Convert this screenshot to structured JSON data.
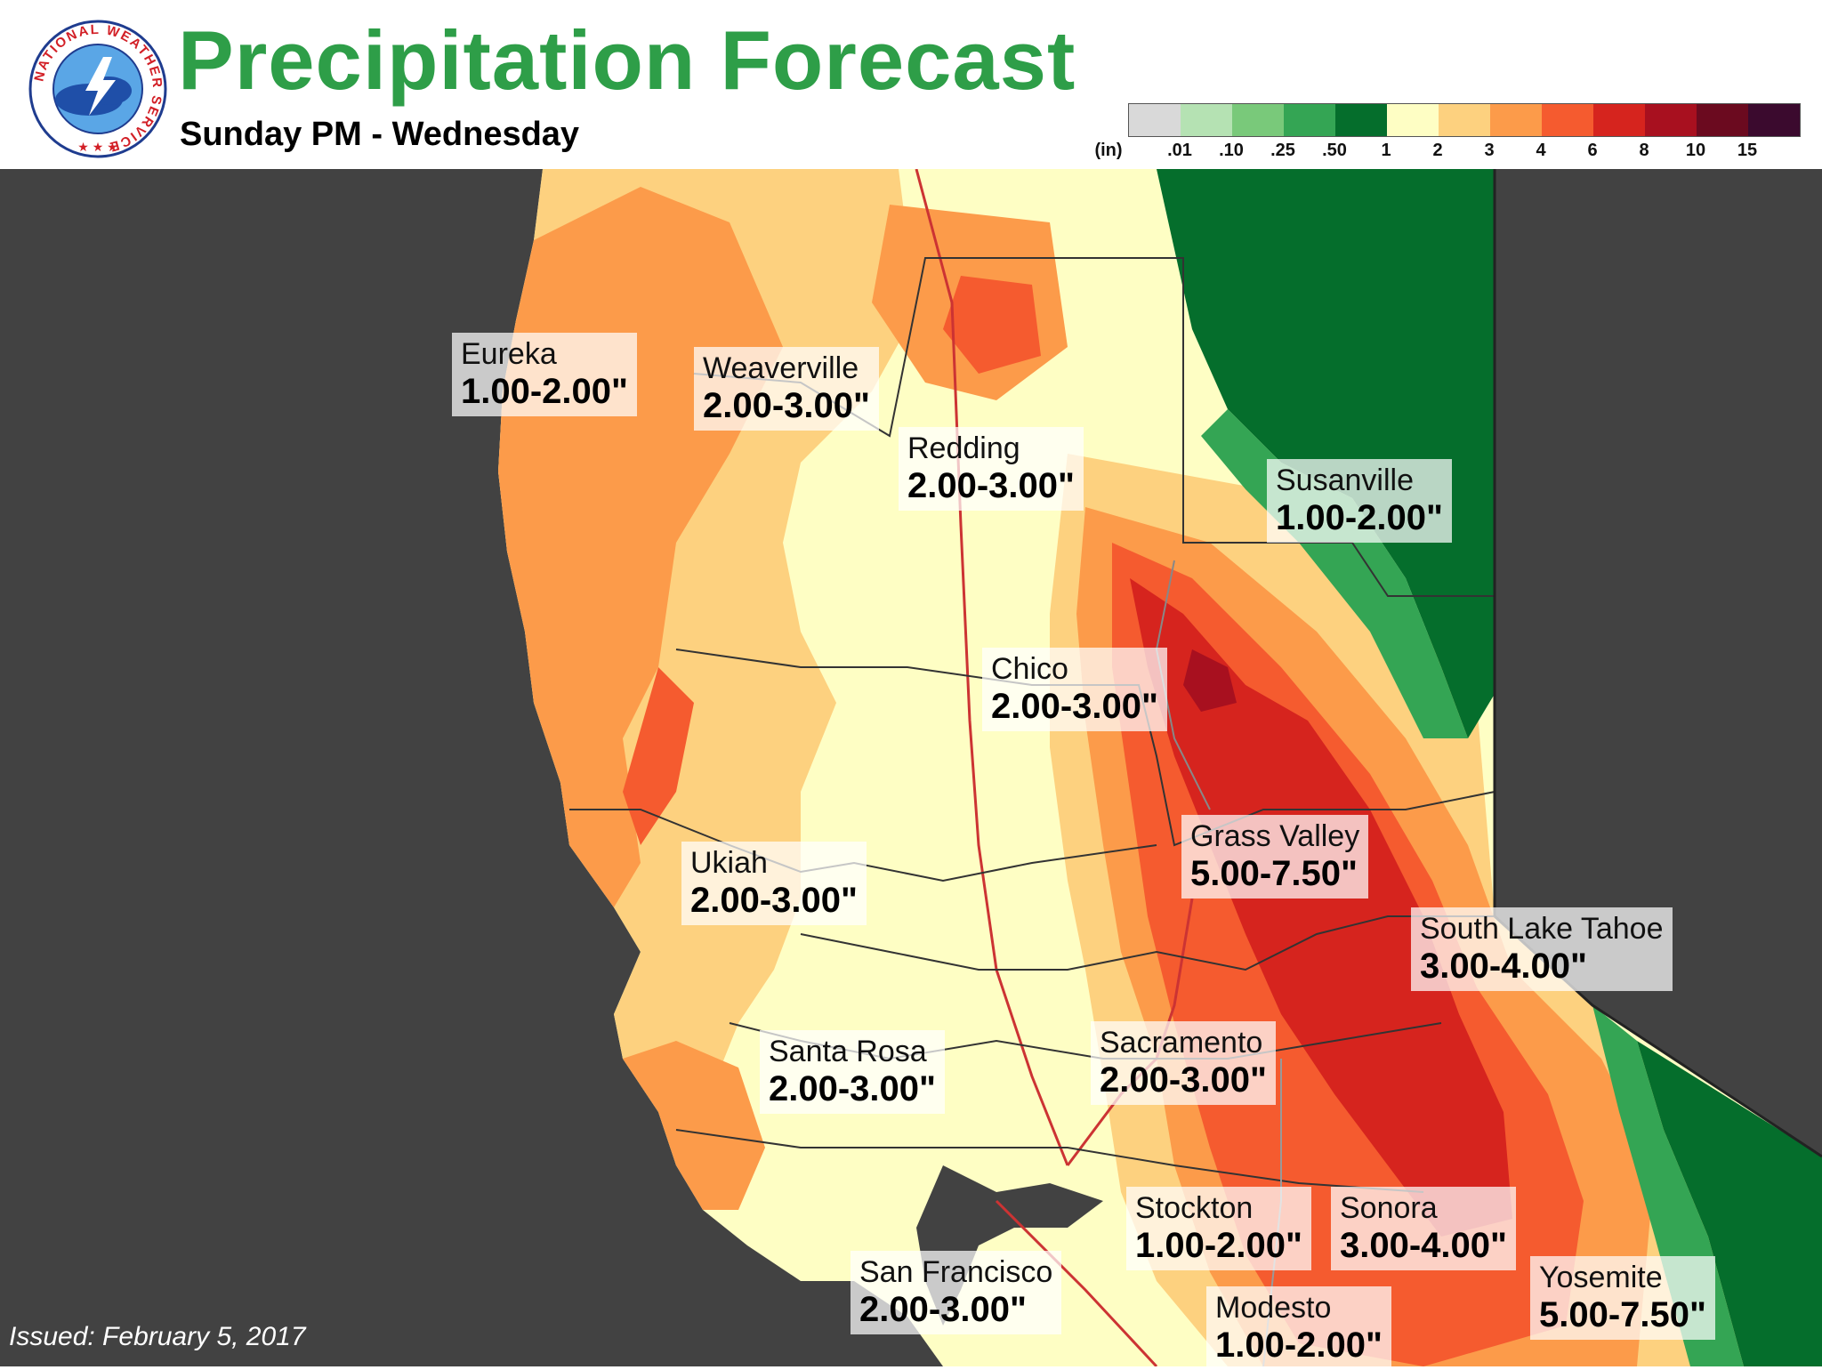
{
  "header": {
    "title": "Precipitation Forecast",
    "subtitle": "Sunday PM - Wednesday",
    "logo_text": "NATIONAL WEATHER SERVICE",
    "logo_icon": "nws-logo-icon"
  },
  "legend": {
    "unit": "(in)",
    "labels": [
      ".01",
      ".10",
      ".25",
      ".50",
      "1",
      "2",
      "3",
      "4",
      "6",
      "8",
      "10",
      "15"
    ],
    "colors": [
      "#d9d9d9",
      "#b5e2b3",
      "#79c97a",
      "#34a554",
      "#056e2c",
      "#fefec4",
      "#fdd17f",
      "#fc9b4a",
      "#f55b2f",
      "#d6241e",
      "#a8101f",
      "#6b0a1f",
      "#3b0a2e"
    ]
  },
  "cities": [
    {
      "name": "Eureka",
      "value": "1.00-2.00\""
    },
    {
      "name": "Weaverville",
      "value": "2.00-3.00\""
    },
    {
      "name": "Redding",
      "value": "2.00-3.00\""
    },
    {
      "name": "Susanville",
      "value": "1.00-2.00\""
    },
    {
      "name": "Chico",
      "value": "2.00-3.00\""
    },
    {
      "name": "Grass Valley",
      "value": "5.00-7.50\""
    },
    {
      "name": "Ukiah",
      "value": "2.00-3.00\""
    },
    {
      "name": "South Lake Tahoe",
      "value": "3.00-4.00\""
    },
    {
      "name": "Santa Rosa",
      "value": "2.00-3.00\""
    },
    {
      "name": "Sacramento",
      "value": "2.00-3.00\""
    },
    {
      "name": "Stockton",
      "value": "1.00-2.00\""
    },
    {
      "name": "Sonora",
      "value": "3.00-4.00\""
    },
    {
      "name": "San Francisco",
      "value": "2.00-3.00\""
    },
    {
      "name": "Yosemite",
      "value": "5.00-7.50\""
    },
    {
      "name": "Modesto",
      "value": "1.00-2.00\""
    }
  ],
  "issued": "Issued: February 5, 2017",
  "colors": {
    "title": "#2e9e48",
    "ocean": "#424242",
    "light_precip": "#fefec4",
    "moderate_precip": "#fdd17f",
    "heavy_precip": "#fc9b4a",
    "very_heavy_precip": "#f55b2f",
    "extreme_precip": "#d6241e",
    "green_low": "#056e2c"
  }
}
